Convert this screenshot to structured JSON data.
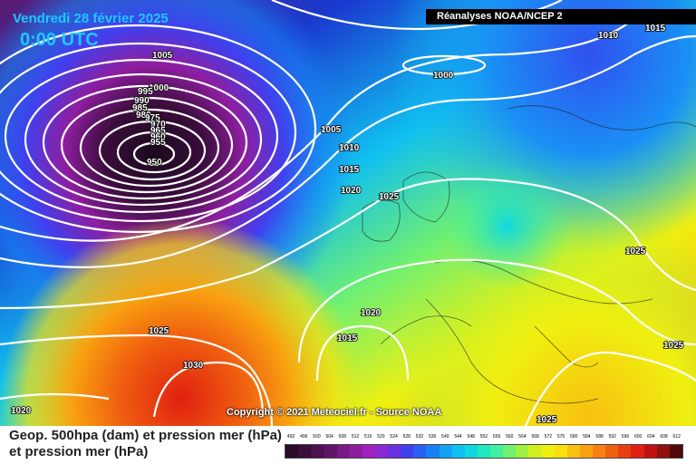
{
  "title": {
    "date": "Vendredi 28 février 2025",
    "time": "0:00 UTC"
  },
  "header": {
    "source_label": "Réanalyses NOAA/NCEP 2"
  },
  "copyright": "Copyright © 2021 Meteociel.fr - Source NOAA",
  "legend": {
    "line1": "Geop. 500hpa (dam) et pression mer (hPa)",
    "line2": "et pression mer (hPa)"
  },
  "isobar_labels": [
    "1010",
    "1015",
    "1005",
    "1000",
    "995",
    "990",
    "985",
    "980",
    "975",
    "970",
    "965",
    "960",
    "955",
    "950",
    "1000",
    "1005",
    "1010",
    "1015",
    "1020",
    "1025",
    "1025",
    "1025",
    "1020",
    "1015",
    "1030",
    "1020",
    "1025",
    "1025"
  ],
  "scale": {
    "values": [
      "492",
      "496",
      "500",
      "504",
      "508",
      "512",
      "516",
      "520",
      "524",
      "528",
      "532",
      "536",
      "540",
      "544",
      "548",
      "552",
      "556",
      "560",
      "564",
      "568",
      "572",
      "576",
      "580",
      "584",
      "588",
      "592",
      "596",
      "600",
      "604",
      "608",
      "612"
    ],
    "colors": [
      "#2a0a2a",
      "#3b0d3b",
      "#4d1050",
      "#5e1566",
      "#7a1a86",
      "#8e1ea0",
      "#a020c0",
      "#8c28d4",
      "#6a30e0",
      "#4040ee",
      "#2a60f2",
      "#1a80f4",
      "#14a0f4",
      "#10c0f0",
      "#10d8e0",
      "#20e8c0",
      "#40f0a0",
      "#70f070",
      "#a0f040",
      "#d0f020",
      "#f0f010",
      "#f8e010",
      "#f8c010",
      "#f8a010",
      "#f88010",
      "#f06010",
      "#e84010",
      "#e02010",
      "#c01010",
      "#901010",
      "#500808"
    ]
  },
  "colors": {
    "title_cyan": "#1ec8ff",
    "isobar": "#ffffff"
  }
}
